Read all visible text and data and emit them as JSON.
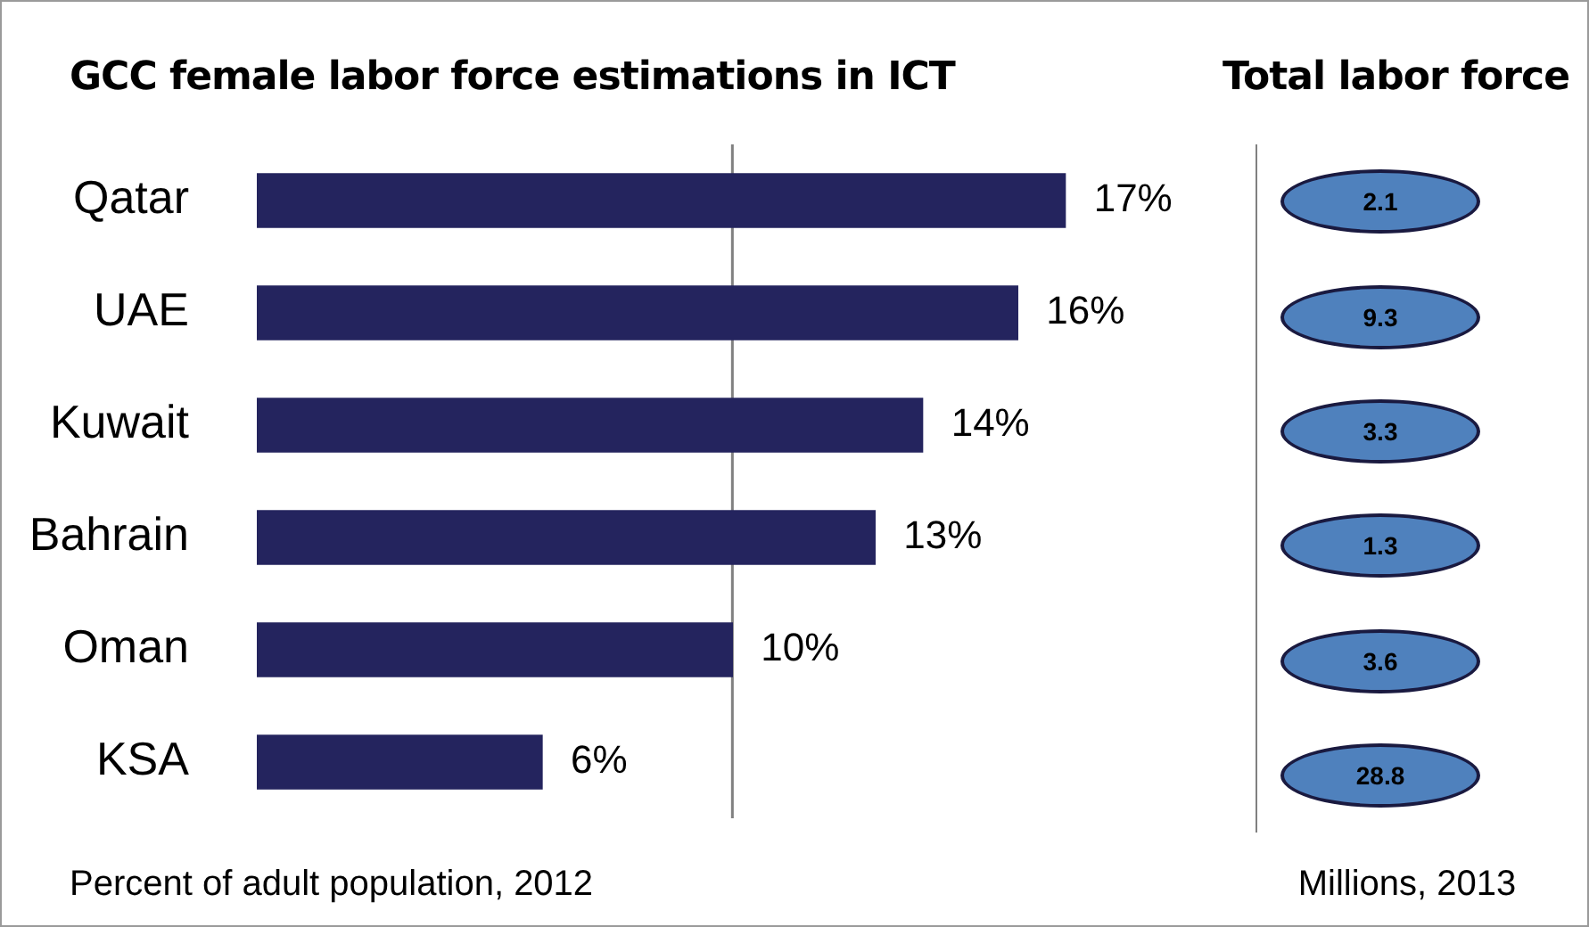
{
  "chart_data": [
    {
      "type": "bar",
      "orientation": "horizontal",
      "title": "GCC female labor force estimations in ICT",
      "xlabel": "Percent of adult population, 2012",
      "categories": [
        "Qatar",
        "UAE",
        "Kuwait",
        "Bahrain",
        "Oman",
        "KSA"
      ],
      "values": [
        17,
        16,
        14,
        13,
        10,
        6
      ],
      "value_labels": [
        "17%",
        "16%",
        "14%",
        "13%",
        "10%",
        "6%"
      ],
      "color": "#24245e",
      "ref_lines": [
        {
          "axis": "x",
          "value": 10,
          "color": "#808080"
        }
      ],
      "grid": false,
      "legend": false,
      "tick_labels": "y"
    },
    {
      "type": "other",
      "title": "Total labor force",
      "xlabel": "Millions, 2013",
      "values": [
        2.1,
        9.3,
        3.3,
        1.3,
        3.6,
        28.8
      ],
      "data_labels": true,
      "color": "#4f81bd"
    }
  ]
}
